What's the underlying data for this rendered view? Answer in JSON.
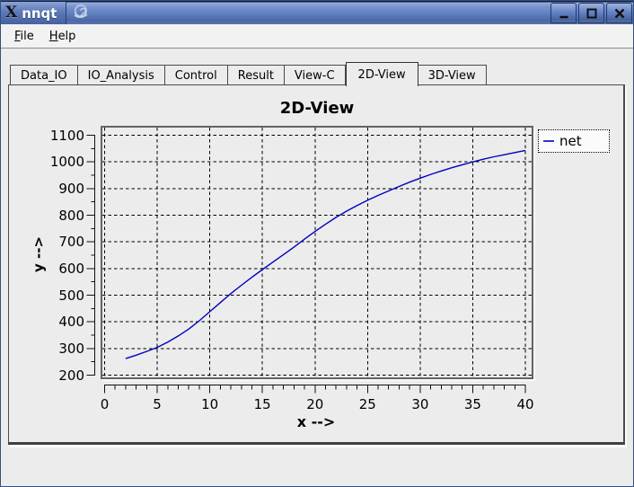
{
  "window": {
    "title": "nnqt"
  },
  "titlebar": {
    "icons": [
      "x11-logo",
      "app-swirl"
    ],
    "buttons": [
      {
        "name": "minimize"
      },
      {
        "name": "maximize"
      },
      {
        "name": "close"
      }
    ]
  },
  "menubar": {
    "items": [
      {
        "label": "File"
      },
      {
        "label": "Help"
      }
    ]
  },
  "tabs": {
    "items": [
      "Data_IO",
      "IO_Analysis",
      "Control",
      "Result",
      "View-C",
      "2D-View",
      "3D-View"
    ],
    "active": "2D-View"
  },
  "colors": {
    "window_bg": "#ECECEC",
    "titlebar_blue": "#5F7FC2",
    "curve": "#0000C0",
    "grid": "#000000",
    "canvas_bg": "#ECECEC"
  },
  "chart_data": {
    "type": "line",
    "title": "2D-View",
    "xlabel": "x -->",
    "ylabel": "y -->",
    "xlim": [
      0,
      40
    ],
    "ylim": [
      200,
      1100
    ],
    "x_ticks": [
      0,
      5,
      10,
      15,
      20,
      25,
      30,
      35,
      40
    ],
    "y_ticks": [
      200,
      300,
      400,
      500,
      600,
      700,
      800,
      900,
      1000,
      1100
    ],
    "x_minor_step": 1,
    "y_minor_step": 50,
    "grid": true,
    "grid_style": "dashed",
    "legend": {
      "position": "top-right-outside",
      "entries": [
        {
          "label": "net",
          "color": "#0000C0"
        }
      ]
    },
    "series": [
      {
        "name": "net",
        "color": "#0000C0",
        "x": [
          2,
          3,
          4,
          5,
          6,
          7,
          8,
          9,
          10,
          11,
          12,
          13,
          14,
          15,
          16,
          17,
          18,
          19,
          20,
          21,
          22,
          23,
          24,
          25,
          26,
          27,
          28,
          29,
          30,
          31,
          32,
          33,
          34,
          35,
          36,
          37,
          38,
          39,
          40
        ],
        "y": [
          262,
          275,
          289,
          304,
          324,
          347,
          373,
          404,
          438,
          472,
          506,
          537,
          567,
          596,
          624,
          652,
          680,
          710,
          739,
          766,
          792,
          815,
          836,
          856,
          874,
          891,
          908,
          924,
          939,
          953,
          966,
          978,
          989,
          1000,
          1010,
          1019,
          1027,
          1035,
          1043
        ]
      }
    ]
  }
}
